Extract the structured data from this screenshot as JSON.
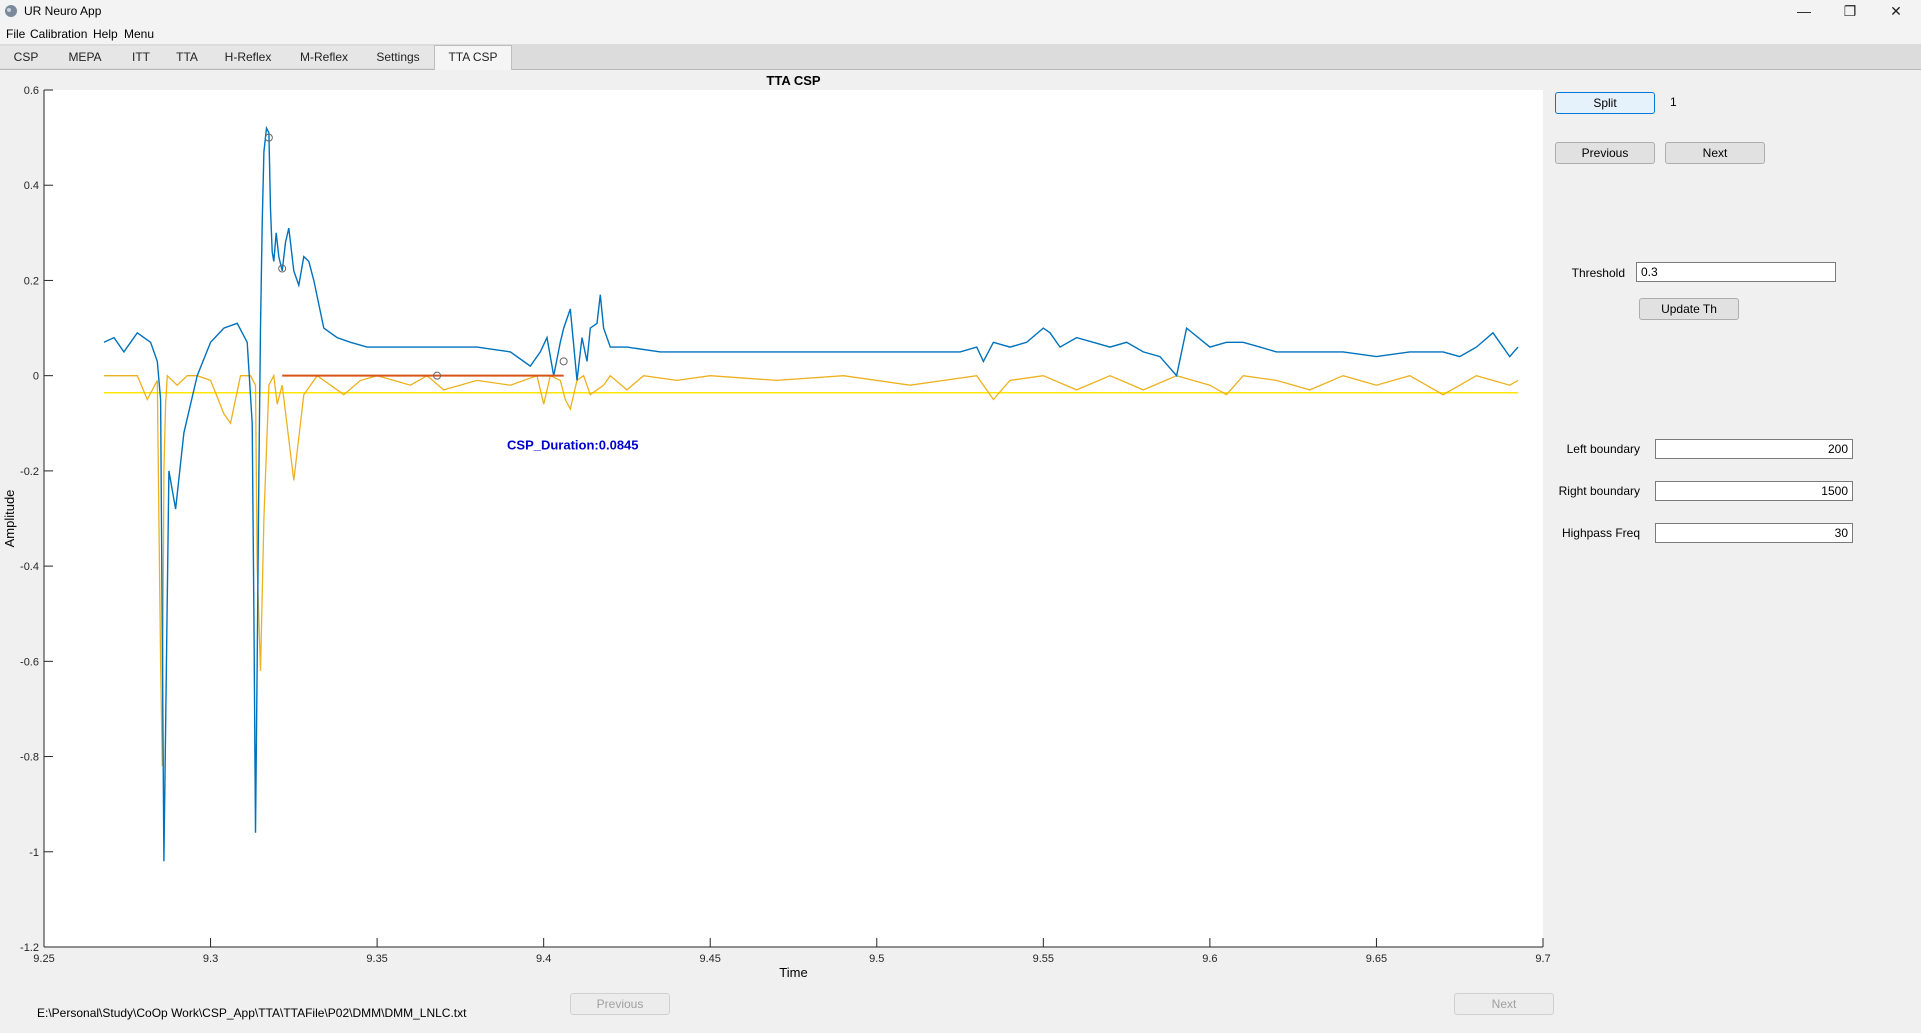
{
  "window": {
    "title": "UR Neuro App",
    "controls": [
      "—",
      "❐",
      "✕"
    ]
  },
  "menu": [
    "File",
    "Calibration",
    "Help",
    "Menu"
  ],
  "tabs": [
    "CSP",
    "MEPA",
    "ITT",
    "TTA",
    "H-Reflex",
    "M-Reflex",
    "Settings",
    "TTA CSP"
  ],
  "active_tab": "TTA CSP",
  "right_panel": {
    "split_label": "Split",
    "split_count": "1",
    "previous_label": "Previous",
    "next_label": "Next",
    "threshold_label": "Threshold",
    "threshold_value": "0.3",
    "update_label": "Update Th",
    "left_boundary_label": "Left boundary",
    "left_boundary_value": "200",
    "right_boundary_label": "Right boundary",
    "right_boundary_value": "1500",
    "highpass_label": "Highpass Freq",
    "highpass_value": "30"
  },
  "bottom": {
    "file_path": "E:\\Personal\\Study\\CoOp Work\\CSP_App\\TTA\\TTAFile\\P02\\DMM\\DMM_LNLC.txt",
    "previous_label": "Previous",
    "next_label": "Next"
  },
  "chart_data": {
    "type": "line",
    "title": "TTA CSP",
    "xlabel": "Time",
    "ylabel": "Amplitude",
    "xlim": [
      9.25,
      9.7
    ],
    "ylim": [
      -1.2,
      0.6
    ],
    "xticks": [
      "9.25",
      "9.3",
      "9.35",
      "9.4",
      "9.45",
      "9.5",
      "9.55",
      "9.6",
      "9.65",
      "9.7"
    ],
    "yticks": [
      "0.6",
      "0.4",
      "0.2",
      "0",
      "-0.2",
      "-0.4",
      "-0.6",
      "-0.8",
      "-1",
      "-1.2"
    ],
    "annotation": "CSP_Duration:0.0845",
    "annotation_pos": [
      9.389,
      -0.155
    ],
    "colors": {
      "signal": "#0072BD",
      "envelope": "#EDB120",
      "threshold": "#FFE600",
      "csp": "#D95319",
      "annotation": "#0000CC"
    },
    "threshold_y": -0.036,
    "csp_segment": {
      "x": [
        9.3215,
        9.406
      ],
      "y": 0.0
    },
    "markers": [
      [
        9.3175,
        0.5
      ],
      [
        9.3215,
        0.225
      ],
      [
        9.368,
        0.0
      ],
      [
        9.406,
        0.03
      ]
    ],
    "series": [
      {
        "x": [
          9.268,
          9.271,
          9.274,
          9.276,
          9.278,
          9.28,
          9.282,
          9.284,
          9.285,
          9.2855,
          9.286,
          9.2875,
          9.2895,
          9.292,
          9.296,
          9.3,
          9.304,
          9.308,
          9.311,
          9.3125,
          9.313,
          9.3135,
          9.314,
          9.3145,
          9.315,
          9.3155,
          9.316,
          9.3168,
          9.3175,
          9.318,
          9.3185,
          9.319,
          9.3197,
          9.3205,
          9.3215,
          9.3225,
          9.3235,
          9.325,
          9.3265,
          9.328,
          9.3295,
          9.331,
          9.334,
          9.338,
          9.342,
          9.347,
          9.352,
          9.36,
          9.37,
          9.38,
          9.39,
          9.396,
          9.399,
          9.401,
          9.403,
          9.405,
          9.406,
          9.408,
          9.41,
          9.4115,
          9.413,
          9.414,
          9.416,
          9.417,
          9.418,
          9.42,
          9.425,
          9.435,
          9.45,
          9.47,
          9.49,
          9.51,
          9.525,
          9.53,
          9.532,
          9.535,
          9.54,
          9.545,
          9.55,
          9.552,
          9.555,
          9.56,
          9.565,
          9.57,
          9.575,
          9.58,
          9.585,
          9.59,
          9.593,
          9.6,
          9.605,
          9.61,
          9.615,
          9.62,
          9.63,
          9.64,
          9.65,
          9.66,
          9.67,
          9.675,
          9.68,
          9.685,
          9.69,
          9.6925
        ],
        "y": [
          0.07,
          0.08,
          0.05,
          0.07,
          0.09,
          0.08,
          0.07,
          0.03,
          -0.05,
          -0.55,
          -1.02,
          -0.2,
          -0.28,
          -0.12,
          0.0,
          0.07,
          0.1,
          0.11,
          0.07,
          -0.1,
          -0.5,
          -0.96,
          -0.6,
          -0.2,
          0.1,
          0.32,
          0.47,
          0.52,
          0.51,
          0.35,
          0.26,
          0.24,
          0.3,
          0.25,
          0.22,
          0.28,
          0.31,
          0.22,
          0.19,
          0.25,
          0.24,
          0.2,
          0.1,
          0.08,
          0.07,
          0.06,
          0.06,
          0.06,
          0.06,
          0.06,
          0.05,
          0.02,
          0.05,
          0.08,
          0.0,
          0.07,
          0.1,
          0.14,
          -0.01,
          0.08,
          0.03,
          0.1,
          0.11,
          0.17,
          0.1,
          0.06,
          0.06,
          0.05,
          0.05,
          0.05,
          0.05,
          0.05,
          0.05,
          0.06,
          0.03,
          0.07,
          0.06,
          0.07,
          0.1,
          0.09,
          0.06,
          0.08,
          0.07,
          0.06,
          0.07,
          0.05,
          0.04,
          0.0,
          0.1,
          0.06,
          0.07,
          0.07,
          0.06,
          0.05,
          0.05,
          0.05,
          0.04,
          0.05,
          0.05,
          0.04,
          0.06,
          0.09,
          0.04,
          0.06
        ]
      },
      {
        "x": [
          9.268,
          9.275,
          9.278,
          9.281,
          9.284,
          9.2845,
          9.285,
          9.2855,
          9.286,
          9.2865,
          9.287,
          9.29,
          9.293,
          9.296,
          9.3,
          9.304,
          9.306,
          9.3075,
          9.309,
          9.312,
          9.3135,
          9.314,
          9.315,
          9.316,
          9.3175,
          9.319,
          9.32,
          9.3215,
          9.325,
          9.328,
          9.332,
          9.336,
          9.34,
          9.345,
          9.35,
          9.355,
          9.36,
          9.365,
          9.37,
          9.38,
          9.39,
          9.398,
          9.4,
          9.402,
          9.405,
          9.4065,
          9.408,
          9.41,
          9.412,
          9.414,
          9.418,
          9.42,
          9.425,
          9.43,
          9.44,
          9.45,
          9.47,
          9.49,
          9.51,
          9.53,
          9.535,
          9.54,
          9.55,
          9.56,
          9.57,
          9.58,
          9.59,
          9.6,
          9.605,
          9.61,
          9.62,
          9.63,
          9.64,
          9.65,
          9.66,
          9.67,
          9.68,
          9.69,
          9.6925
        ],
        "y": [
          0.0,
          0.0,
          0.0,
          -0.05,
          -0.01,
          -0.3,
          -0.6,
          -0.82,
          -0.2,
          -0.06,
          0.0,
          -0.02,
          0.0,
          0.0,
          -0.01,
          -0.08,
          -0.1,
          -0.05,
          0.0,
          0.0,
          -0.02,
          -0.4,
          -0.62,
          -0.3,
          -0.02,
          0.0,
          -0.06,
          -0.02,
          -0.22,
          -0.04,
          0.0,
          -0.02,
          -0.04,
          -0.01,
          0.0,
          -0.01,
          -0.02,
          0.0,
          -0.03,
          -0.01,
          -0.02,
          0.0,
          -0.06,
          0.0,
          -0.01,
          -0.05,
          -0.07,
          -0.01,
          0.0,
          -0.04,
          -0.02,
          0.0,
          -0.03,
          0.0,
          -0.01,
          0.0,
          -0.01,
          0.0,
          -0.02,
          0.0,
          -0.05,
          -0.01,
          0.0,
          -0.03,
          0.0,
          -0.03,
          0.0,
          -0.02,
          -0.04,
          0.0,
          -0.01,
          -0.03,
          0.0,
          -0.02,
          0.0,
          -0.04,
          0.0,
          -0.02,
          -0.01
        ]
      }
    ]
  }
}
